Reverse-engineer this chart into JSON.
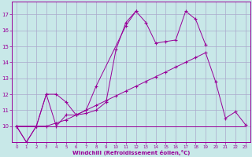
{
  "background_color": "#c8e8e8",
  "grid_color": "#aaaacc",
  "line_color": "#990099",
  "xlabel": "Windchill (Refroidissement éolien,°C)",
  "xlim": [
    -0.5,
    23.5
  ],
  "ylim": [
    9.0,
    17.8
  ],
  "xticks": [
    0,
    1,
    2,
    3,
    4,
    5,
    6,
    7,
    8,
    9,
    10,
    11,
    12,
    13,
    14,
    15,
    16,
    17,
    18,
    19,
    20,
    21,
    22,
    23
  ],
  "yticks": [
    10,
    11,
    12,
    13,
    14,
    15,
    16,
    17
  ],
  "line1_x": [
    0,
    1,
    2,
    3,
    4,
    5,
    6,
    7,
    8,
    11,
    12,
    13,
    14,
    15,
    16,
    17,
    18,
    19
  ],
  "line1_y": [
    10,
    9,
    10,
    12,
    10,
    10.7,
    10.7,
    11.0,
    12.5,
    16.3,
    17.2,
    16.5,
    15.2,
    15.3,
    15.4,
    17.2,
    16.7,
    15.1
  ],
  "line2_x": [
    0,
    1,
    2,
    3,
    4,
    5,
    6,
    7,
    8,
    9,
    10,
    11,
    12
  ],
  "line2_y": [
    10,
    9,
    10,
    12,
    12,
    11.5,
    10.7,
    10.8,
    11.0,
    11.5,
    14.8,
    16.5,
    17.2
  ],
  "line3_x": [
    0,
    1,
    2,
    3,
    4,
    5,
    6,
    7,
    8,
    9,
    10,
    11,
    12,
    13,
    14,
    15,
    16,
    17,
    18,
    19,
    20,
    21,
    22,
    23
  ],
  "line3_y": [
    10,
    10,
    10,
    10,
    10,
    10,
    10,
    10,
    10,
    10,
    10,
    10,
    10,
    10,
    10,
    10,
    10,
    10,
    10,
    10,
    10,
    10,
    10,
    10
  ],
  "line4_x": [
    0,
    2,
    3,
    4,
    5,
    6,
    7,
    8,
    9,
    10,
    11,
    12,
    13,
    14,
    15,
    16,
    17,
    18,
    19,
    20,
    21,
    22,
    23
  ],
  "line4_y": [
    10,
    10,
    10,
    10.2,
    10.4,
    10.7,
    11.0,
    11.3,
    11.6,
    11.9,
    12.2,
    12.5,
    12.8,
    13.1,
    13.4,
    13.7,
    14.0,
    14.3,
    14.6,
    12.8,
    10.5,
    10.9,
    10.1
  ]
}
